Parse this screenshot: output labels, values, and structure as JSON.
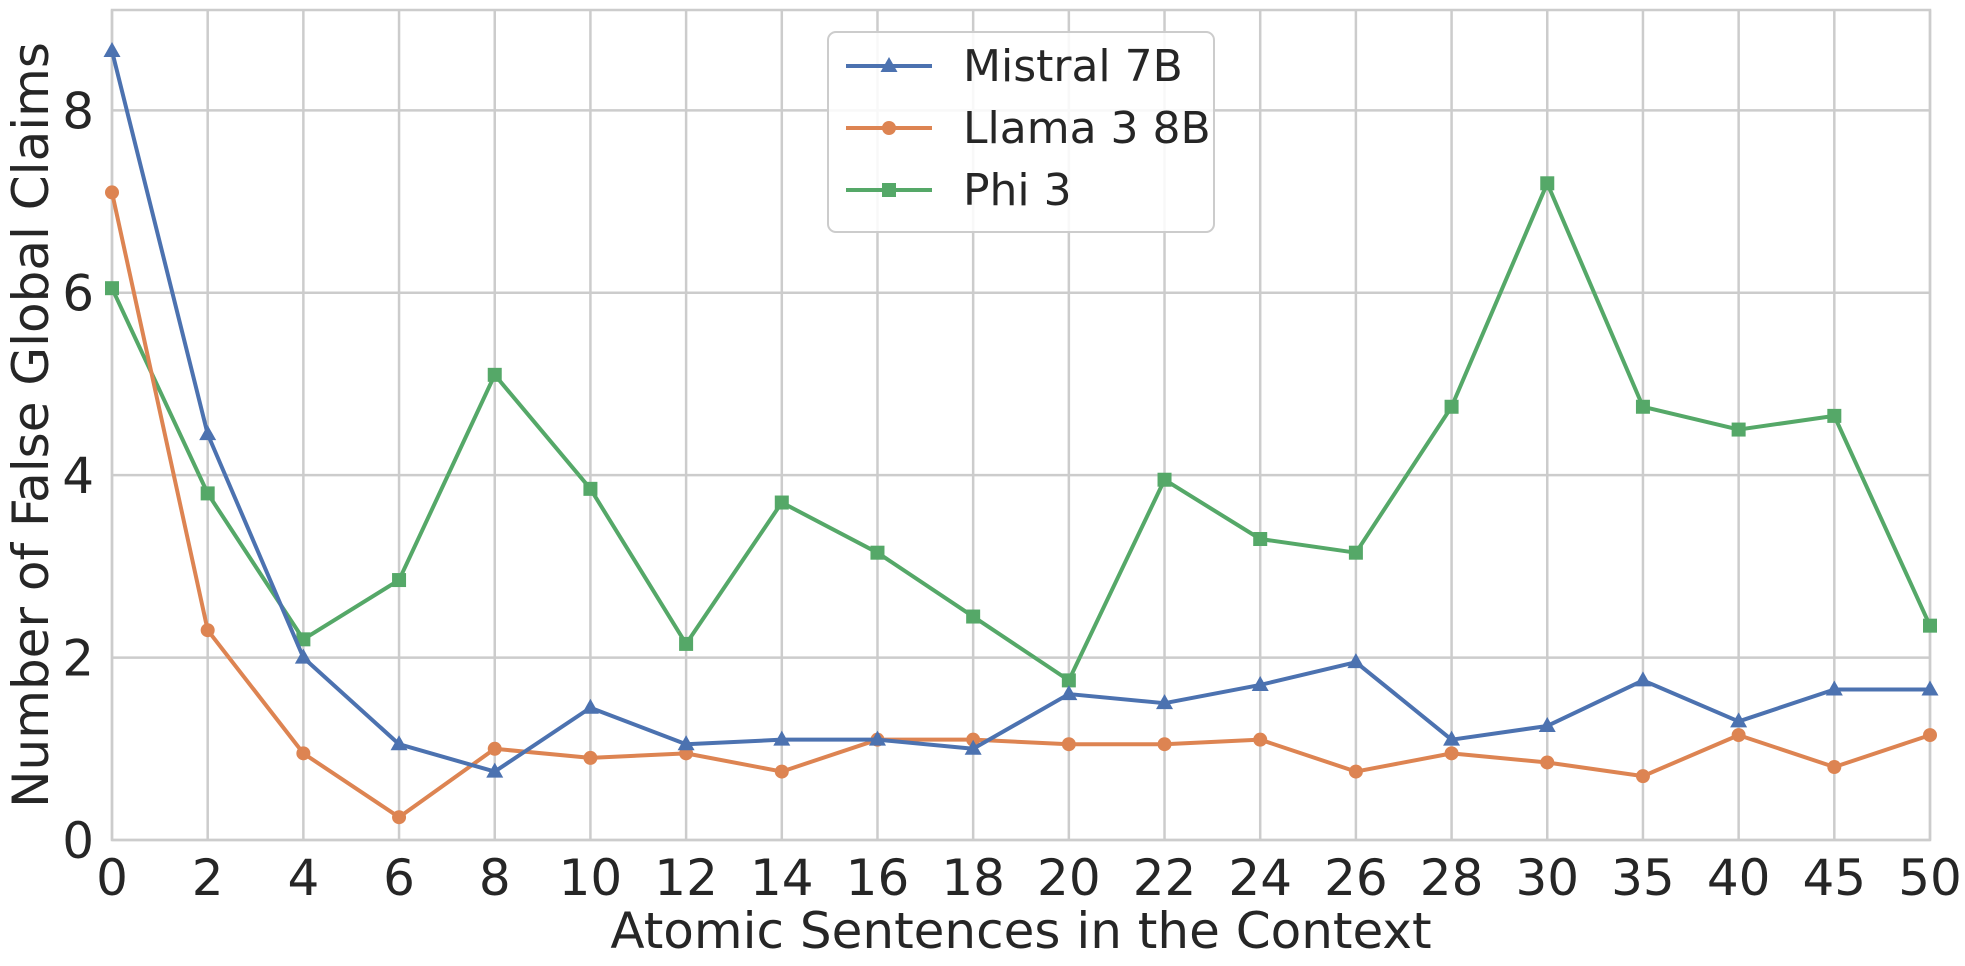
{
  "chart_data": {
    "type": "line",
    "title": "",
    "xlabel": "Atomic Sentences in the Context",
    "ylabel": "Number of False Global Claims",
    "categories": [
      "0",
      "2",
      "4",
      "6",
      "8",
      "10",
      "12",
      "14",
      "16",
      "18",
      "20",
      "22",
      "24",
      "26",
      "28",
      "30",
      "35",
      "40",
      "45",
      "50"
    ],
    "ylim": [
      0,
      9.1
    ],
    "yticks": [
      0,
      2,
      4,
      6,
      8
    ],
    "grid": true,
    "legend_position": "top-center",
    "series": [
      {
        "name": "Mistral 7B",
        "color": "#4c72b0",
        "marker": "triangle",
        "values": [
          8.65,
          4.45,
          2.0,
          1.05,
          0.75,
          1.45,
          1.05,
          1.1,
          1.1,
          1.0,
          1.6,
          1.5,
          1.7,
          1.95,
          1.1,
          1.25,
          1.75,
          1.3,
          1.65,
          1.65
        ]
      },
      {
        "name": "Llama 3 8B",
        "color": "#dd8452",
        "marker": "circle",
        "values": [
          7.1,
          2.3,
          0.95,
          0.25,
          1.0,
          0.9,
          0.95,
          0.75,
          1.1,
          1.1,
          1.05,
          1.05,
          1.1,
          0.75,
          0.95,
          0.85,
          0.7,
          1.15,
          0.8,
          1.15
        ]
      },
      {
        "name": "Phi 3",
        "color": "#55a868",
        "marker": "square",
        "values": [
          6.05,
          3.8,
          2.2,
          2.85,
          5.1,
          3.85,
          2.15,
          3.7,
          3.15,
          2.45,
          1.75,
          3.95,
          3.3,
          3.15,
          4.75,
          7.2,
          4.75,
          4.5,
          4.65,
          2.35
        ]
      }
    ]
  }
}
